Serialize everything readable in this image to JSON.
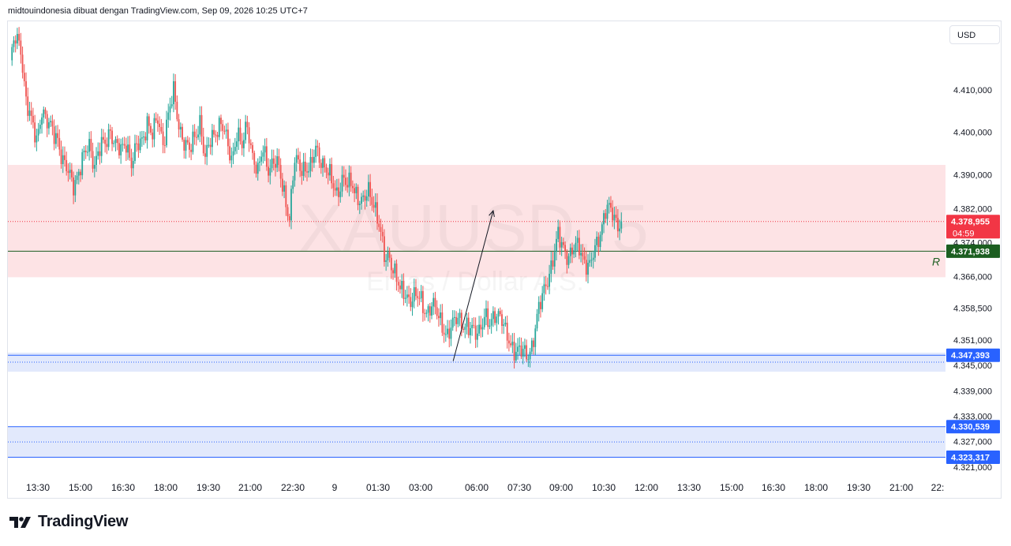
{
  "header": {
    "title": "midtouindonesia dibuat dengan TradingView.com, Sep 09, 2026 10:25 UTC+7"
  },
  "currency_button": {
    "label": "USD"
  },
  "watermark": {
    "symbol": "XAUUSD, 5",
    "description": "Emas / Dollar A.S."
  },
  "brand": {
    "name": "TradingView"
  },
  "colors": {
    "up": "#26a69a",
    "down": "#ef5350",
    "resistance_zone": "#fde1e4",
    "support_zone": "#dbe4fb",
    "support_line": "#2962ff",
    "r_line": "#1b5e20",
    "price_tag": "#f23645",
    "r_tag": "#1b5e20",
    "support_tag": "#2962ff"
  },
  "chart_data": {
    "type": "candlestick",
    "symbol": "XAUUSD",
    "timeframe": "5",
    "y_axis": {
      "ticks": [
        "4.410,000",
        "4.400,000",
        "4.390,000",
        "4.382,000",
        "4.374,000",
        "4.366,000",
        "4.358,500",
        "4.351,000",
        "4.345,000",
        "4.339,000",
        "4.333,000",
        "4.327,000",
        "4.321,000"
      ],
      "tick_values": [
        4410,
        4400,
        4390,
        4382,
        4374,
        4366,
        4358.5,
        4351,
        4345,
        4339,
        4333,
        4327,
        4321
      ]
    },
    "x_axis": {
      "ticks": [
        "13:30",
        "15:00",
        "16:30",
        "18:00",
        "19:30",
        "21:00",
        "22:30",
        "9",
        "01:30",
        "03:00",
        "06:00",
        "07:30",
        "09:00",
        "10:30",
        "12:00",
        "13:30",
        "15:00",
        "16:30",
        "18:00",
        "19:30",
        "21:00",
        "22:"
      ]
    },
    "current_price": {
      "label": "4.378,955",
      "value": 4378.955,
      "countdown": "04:59"
    },
    "levels": [
      {
        "label": "4.371,938",
        "value": 4371.938,
        "marker": "R"
      },
      {
        "label": "4.347,393",
        "value": 4347.393
      },
      {
        "label": "4.330,539",
        "value": 4330.539
      },
      {
        "label": "4.323,317",
        "value": 4323.317
      }
    ],
    "zones": [
      {
        "name": "resistance",
        "from": 4365.8,
        "to": 4392.3
      },
      {
        "name": "support",
        "from": 4343.5,
        "to": 4348.0
      },
      {
        "name": "lower-support",
        "from": 4323.317,
        "to": 4330.539
      }
    ],
    "arrow": {
      "from_time": "05:10",
      "from_price": 4346.0,
      "to_time": "06:35",
      "to_price": 4381.5
    },
    "close_path": [
      [
        0,
        4417
      ],
      [
        3,
        4422
      ],
      [
        6,
        4420
      ],
      [
        9,
        4408
      ],
      [
        12,
        4402
      ],
      [
        15,
        4398
      ],
      [
        18,
        4406
      ],
      [
        21,
        4402
      ],
      [
        24,
        4400
      ],
      [
        27,
        4399
      ],
      [
        30,
        4393
      ],
      [
        33,
        4390
      ],
      [
        36,
        4388
      ],
      [
        39,
        4391
      ],
      [
        42,
        4394
      ],
      [
        45,
        4397
      ],
      [
        48,
        4393
      ],
      [
        51,
        4396
      ],
      [
        54,
        4397
      ],
      [
        57,
        4401
      ],
      [
        60,
        4397
      ],
      [
        63,
        4395
      ],
      [
        66,
        4398
      ],
      [
        69,
        4393
      ],
      [
        72,
        4396
      ],
      [
        75,
        4398
      ],
      [
        78,
        4403
      ],
      [
        81,
        4399
      ],
      [
        84,
        4403
      ],
      [
        87,
        4398
      ],
      [
        90,
        4404
      ],
      [
        93,
        4409
      ],
      [
        96,
        4402
      ],
      [
        99,
        4398
      ],
      [
        102,
        4395
      ],
      [
        105,
        4399
      ],
      [
        108,
        4403
      ],
      [
        111,
        4393
      ],
      [
        114,
        4398
      ],
      [
        117,
        4401
      ],
      [
        120,
        4402
      ],
      [
        123,
        4398
      ],
      [
        126,
        4394
      ],
      [
        129,
        4400
      ],
      [
        132,
        4396
      ],
      [
        135,
        4402
      ],
      [
        138,
        4395
      ],
      [
        141,
        4390
      ],
      [
        144,
        4396
      ],
      [
        147,
        4392
      ],
      [
        150,
        4393
      ],
      [
        153,
        4391
      ],
      [
        156,
        4386
      ],
      [
        159,
        4380
      ],
      [
        162,
        4393
      ],
      [
        165,
        4392
      ],
      [
        168,
        4392
      ],
      [
        171,
        4391
      ],
      [
        174,
        4396
      ],
      [
        177,
        4394
      ],
      [
        180,
        4391
      ],
      [
        183,
        4388
      ],
      [
        186,
        4386
      ],
      [
        189,
        4389
      ],
      [
        192,
        4387
      ],
      [
        195,
        4388
      ],
      [
        198,
        4385
      ],
      [
        201,
        4383
      ],
      [
        204,
        4386
      ],
      [
        207,
        4384
      ],
      [
        210,
        4378
      ],
      [
        213,
        4370
      ],
      [
        216,
        4371
      ],
      [
        219,
        4367
      ],
      [
        222,
        4362
      ],
      [
        225,
        4362
      ],
      [
        228,
        4361
      ],
      [
        231,
        4361
      ],
      [
        234,
        4360
      ],
      [
        237,
        4358
      ],
      [
        240,
        4359
      ],
      [
        243,
        4357
      ],
      [
        246,
        4355
      ],
      [
        249,
        4352
      ],
      [
        252,
        4354
      ],
      [
        255,
        4357
      ],
      [
        258,
        4355
      ],
      [
        261,
        4353
      ],
      [
        264,
        4353
      ],
      [
        267,
        4354
      ],
      [
        270,
        4356
      ],
      [
        273,
        4354
      ],
      [
        276,
        4358
      ],
      [
        279,
        4357
      ],
      [
        282,
        4352
      ],
      [
        285,
        4350
      ],
      [
        288,
        4349
      ],
      [
        291,
        4348
      ],
      [
        294,
        4347
      ],
      [
        297,
        4350
      ],
      [
        300,
        4356
      ],
      [
        303,
        4361
      ],
      [
        306,
        4366
      ],
      [
        309,
        4370
      ],
      [
        312,
        4375
      ],
      [
        315,
        4373
      ],
      [
        318,
        4371
      ],
      [
        321,
        4372
      ],
      [
        324,
        4373
      ],
      [
        327,
        4370
      ],
      [
        330,
        4368
      ],
      [
        333,
        4372
      ],
      [
        336,
        4377
      ],
      [
        339,
        4382
      ],
      [
        342,
        4381
      ],
      [
        345,
        4379
      ],
      [
        348,
        4378.955
      ]
    ]
  }
}
